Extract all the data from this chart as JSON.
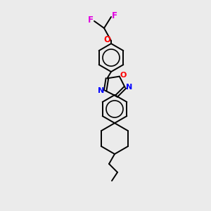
{
  "background_color": "#ebebeb",
  "bond_color": "#000000",
  "atom_colors": {
    "F": "#e000e0",
    "O": "#ff0000",
    "N": "#0000ff",
    "C": "#000000"
  },
  "figsize": [
    3.0,
    3.0
  ],
  "dpi": 100,
  "lw": 1.4
}
